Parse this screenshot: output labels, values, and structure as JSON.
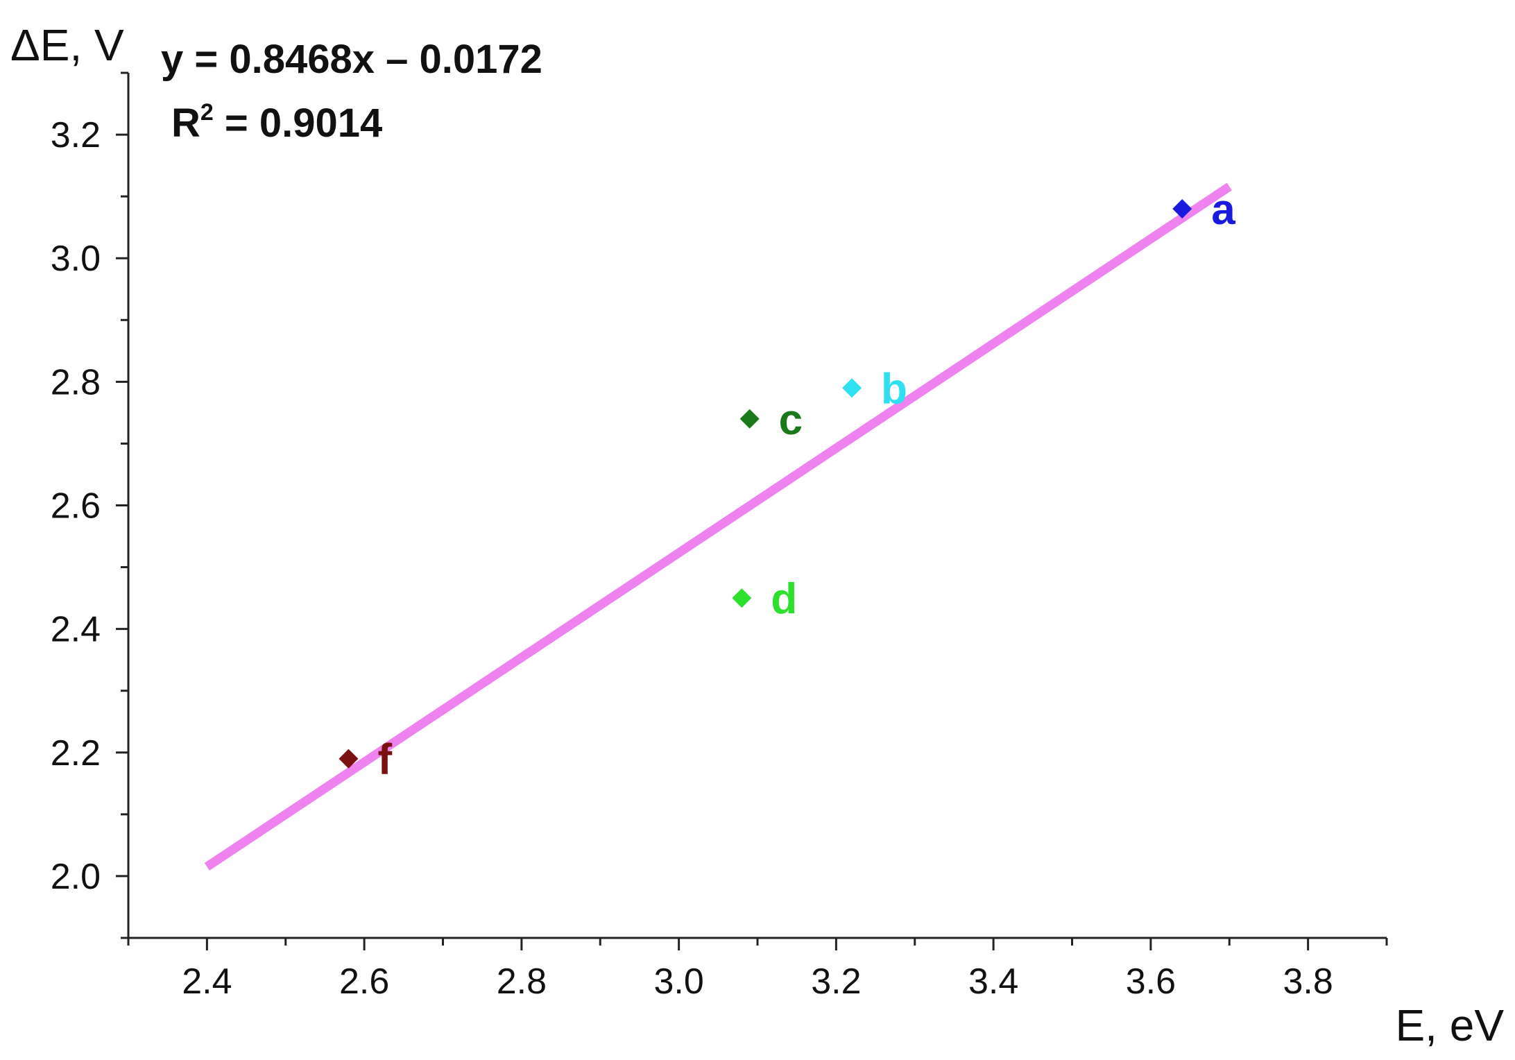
{
  "chart_data": {
    "type": "scatter",
    "xlabel": "E, eV",
    "ylabel": "ΔE, V",
    "xlim": [
      2.3,
      3.9
    ],
    "ylim": [
      1.9,
      3.3
    ],
    "xticks": [
      2.4,
      2.6,
      2.8,
      3.0,
      3.2,
      3.4,
      3.6,
      3.8
    ],
    "yticks": [
      2.0,
      2.2,
      2.4,
      2.6,
      2.8,
      3.0,
      3.2
    ],
    "xtick_labels": [
      "2.4",
      "2.6",
      "2.8",
      "3.0",
      "3.2",
      "3.4",
      "3.6",
      "3.8"
    ],
    "ytick_labels": [
      "2.0",
      "2.2",
      "2.4",
      "2.6",
      "2.8",
      "3.0",
      "3.2"
    ],
    "points": [
      {
        "label": "a",
        "x": 3.64,
        "y": 3.08,
        "color": "#1a1adf"
      },
      {
        "label": "b",
        "x": 3.22,
        "y": 2.79,
        "color": "#2fe0f0"
      },
      {
        "label": "c",
        "x": 3.09,
        "y": 2.74,
        "color": "#1a7a1a"
      },
      {
        "label": "d",
        "x": 3.08,
        "y": 2.45,
        "color": "#2ee02e"
      },
      {
        "label": "f",
        "x": 2.58,
        "y": 2.19,
        "color": "#7a1010"
      }
    ],
    "fit": {
      "x_range": [
        2.4,
        3.7
      ],
      "slope": 0.8468,
      "intercept": -0.0172,
      "color": "#ee82ee",
      "equation": "y = 0.8468x – 0.0172",
      "r2_prefix": "R",
      "r2_sup": "2",
      "r2_value": " = 0.9014"
    },
    "grid": false
  }
}
